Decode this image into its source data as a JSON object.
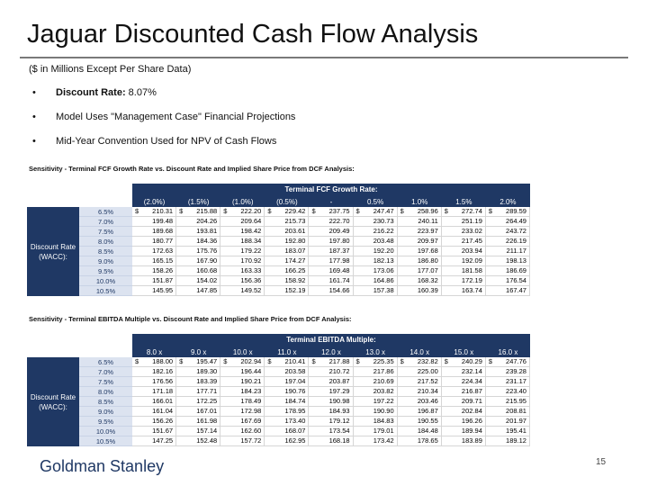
{
  "title": "Jaguar Discounted Cash Flow Analysis",
  "subtitle": "($ in Millions Except Per Share Data)",
  "bullets": [
    {
      "bold": "Discount Rate:",
      "text": " 8.07%"
    },
    {
      "bold": "",
      "text": "Model Uses \"Management Case\" Financial Projections"
    },
    {
      "bold": "",
      "text": "Mid-Year Convention Used for NPV of Cash Flows"
    }
  ],
  "table1": {
    "section_title": "Sensitivity - Terminal FCF Growth Rate vs. Discount Rate and Implied Share Price from DCF Analysis:",
    "header_label": "Terminal FCF Growth Rate:",
    "columns": [
      "(2.0%)",
      "(1.5%)",
      "(1.0%)",
      "(0.5%)",
      "-",
      "0.5%",
      "1.0%",
      "1.5%",
      "2.0%"
    ],
    "row_label": "Discount Rate (WACC):",
    "rates": [
      "6.5%",
      "7.0%",
      "7.5%",
      "8.0%",
      "8.5%",
      "9.0%",
      "9.5%",
      "10.0%",
      "10.5%"
    ],
    "currency": "$",
    "rows": [
      [
        "210.31",
        "215.88",
        "222.20",
        "229.42",
        "237.75",
        "247.47",
        "258.96",
        "272.74",
        "289.59"
      ],
      [
        "199.48",
        "204.26",
        "209.64",
        "215.73",
        "222.70",
        "230.73",
        "240.11",
        "251.19",
        "264.49"
      ],
      [
        "189.68",
        "193.81",
        "198.42",
        "203.61",
        "209.49",
        "216.22",
        "223.97",
        "233.02",
        "243.72"
      ],
      [
        "180.77",
        "184.36",
        "188.34",
        "192.80",
        "197.80",
        "203.48",
        "209.97",
        "217.45",
        "226.19"
      ],
      [
        "172.63",
        "175.76",
        "179.22",
        "183.07",
        "187.37",
        "192.20",
        "197.68",
        "203.94",
        "211.17"
      ],
      [
        "165.15",
        "167.90",
        "170.92",
        "174.27",
        "177.98",
        "182.13",
        "186.80",
        "192.09",
        "198.13"
      ],
      [
        "158.26",
        "160.68",
        "163.33",
        "166.25",
        "169.48",
        "173.06",
        "177.07",
        "181.58",
        "186.69"
      ],
      [
        "151.87",
        "154.02",
        "156.36",
        "158.92",
        "161.74",
        "164.86",
        "168.32",
        "172.19",
        "176.54"
      ],
      [
        "145.95",
        "147.85",
        "149.52",
        "152.19",
        "154.66",
        "157.38",
        "160.39",
        "163.74",
        "167.47"
      ]
    ]
  },
  "table2": {
    "section_title": "Sensitivity - Terminal EBITDA Multiple vs. Discount Rate and Implied Share Price from DCF Analysis:",
    "header_label": "Terminal EBITDA Multiple:",
    "columns": [
      "8.0 x",
      "9.0 x",
      "10.0 x",
      "11.0 x",
      "12.0 x",
      "13.0 x",
      "14.0 x",
      "15.0 x",
      "16.0 x"
    ],
    "row_label": "Discount Rate (WACC):",
    "rates": [
      "6.5%",
      "7.0%",
      "7.5%",
      "8.0%",
      "8.5%",
      "9.0%",
      "9.5%",
      "10.0%",
      "10.5%"
    ],
    "currency": "$",
    "rows": [
      [
        "188.00",
        "195.47",
        "202.94",
        "210.41",
        "217.88",
        "225.35",
        "232.82",
        "240.29",
        "247.76"
      ],
      [
        "182.16",
        "189.30",
        "196.44",
        "203.58",
        "210.72",
        "217.86",
        "225.00",
        "232.14",
        "239.28"
      ],
      [
        "176.56",
        "183.39",
        "190.21",
        "197.04",
        "203.87",
        "210.69",
        "217.52",
        "224.34",
        "231.17"
      ],
      [
        "171.18",
        "177.71",
        "184.23",
        "190.76",
        "197.29",
        "203.82",
        "210.34",
        "216.87",
        "223.40"
      ],
      [
        "166.01",
        "172.25",
        "178.49",
        "184.74",
        "190.98",
        "197.22",
        "203.46",
        "209.71",
        "215.95"
      ],
      [
        "161.04",
        "167.01",
        "172.98",
        "178.95",
        "184.93",
        "190.90",
        "196.87",
        "202.84",
        "208.81"
      ],
      [
        "156.26",
        "161.98",
        "167.69",
        "173.40",
        "179.12",
        "184.83",
        "190.55",
        "196.26",
        "201.97"
      ],
      [
        "151.67",
        "157.14",
        "162.60",
        "168.07",
        "173.54",
        "179.01",
        "184.48",
        "189.94",
        "195.41"
      ],
      [
        "147.25",
        "152.48",
        "157.72",
        "162.95",
        "168.18",
        "173.42",
        "178.65",
        "183.89",
        "189.12"
      ]
    ]
  },
  "footer": {
    "brand": "Goldman Stanley",
    "page_number": "15"
  },
  "colors": {
    "header_blue": "#1f3864",
    "rate_band": "#dce3f0"
  }
}
